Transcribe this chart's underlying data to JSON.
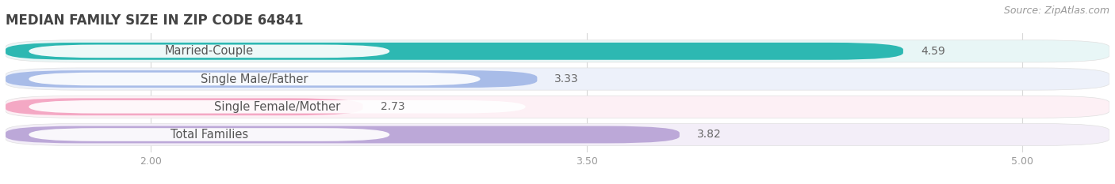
{
  "title": "MEDIAN FAMILY SIZE IN ZIP CODE 64841",
  "source": "Source: ZipAtlas.com",
  "categories": [
    "Married-Couple",
    "Single Male/Father",
    "Single Female/Mother",
    "Total Families"
  ],
  "values": [
    4.59,
    3.33,
    2.73,
    3.82
  ],
  "bar_colors": [
    "#2db8b2",
    "#a8bce8",
    "#f4a8c4",
    "#bca8d8"
  ],
  "bar_bg_colors": [
    "#e8f6f6",
    "#edf1fa",
    "#fdf0f5",
    "#f3eef8"
  ],
  "row_bg_color": "#f2f2f2",
  "xlim_min": 1.5,
  "xlim_max": 5.3,
  "xticks": [
    2.0,
    3.5,
    5.0
  ],
  "value_label_color": "#666666",
  "title_color": "#444444",
  "label_color": "#555555",
  "background_color": "#ffffff",
  "bar_height": 0.62,
  "label_fontsize": 10.5,
  "value_fontsize": 10.0,
  "title_fontsize": 12.0,
  "source_fontsize": 9.0
}
